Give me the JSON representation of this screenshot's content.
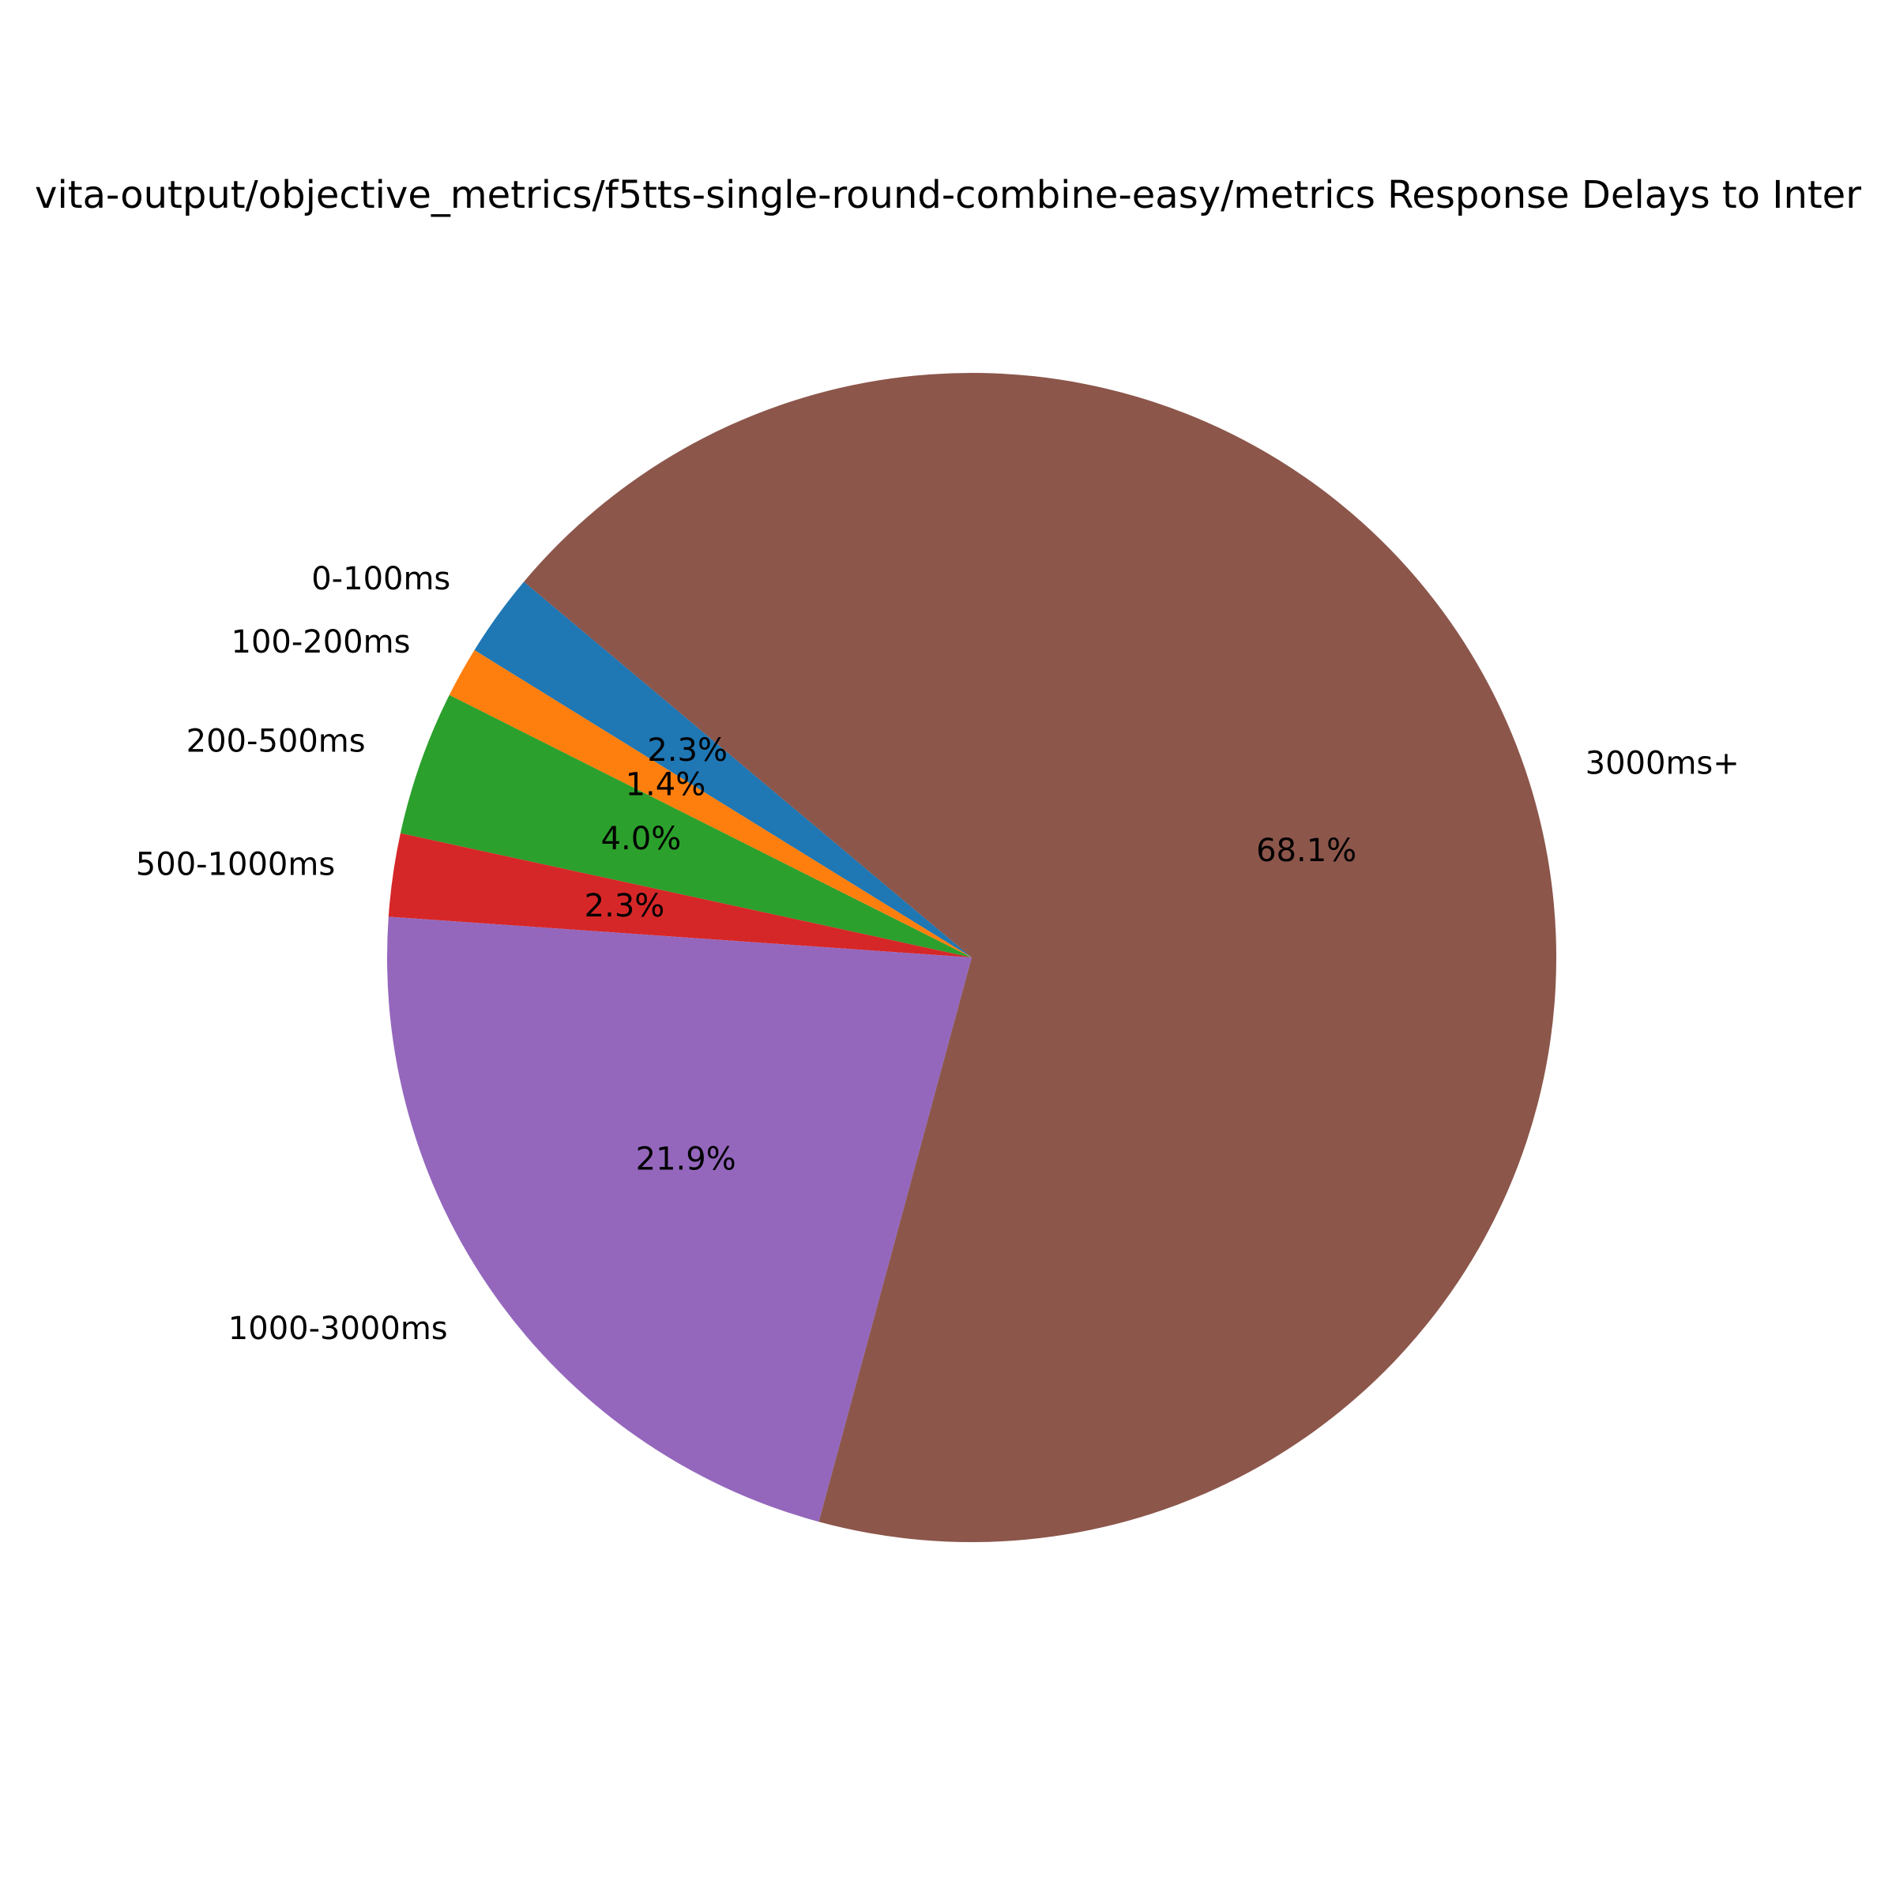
{
  "chart_data": {
    "type": "pie",
    "title": "vita-output/objective_metrics/f5tts-single-round-combine-easy/metrics Response Delays to Inter",
    "categories": [
      "0-100ms",
      "100-200ms",
      "200-500ms",
      "500-1000ms",
      "1000-3000ms",
      "3000ms+"
    ],
    "values": [
      2.3,
      1.4,
      4.0,
      2.3,
      21.9,
      68.1
    ],
    "percent_labels": [
      "2.3%",
      "1.4%",
      "4.0%",
      "2.3%",
      "21.9%",
      "68.1%"
    ],
    "colors": [
      "#1f77b4",
      "#ff7f0e",
      "#2ca02c",
      "#d62728",
      "#9467bd",
      "#8c564b"
    ],
    "start_angle_deg": 140,
    "direction": "counterclockwise",
    "legend": "none"
  }
}
